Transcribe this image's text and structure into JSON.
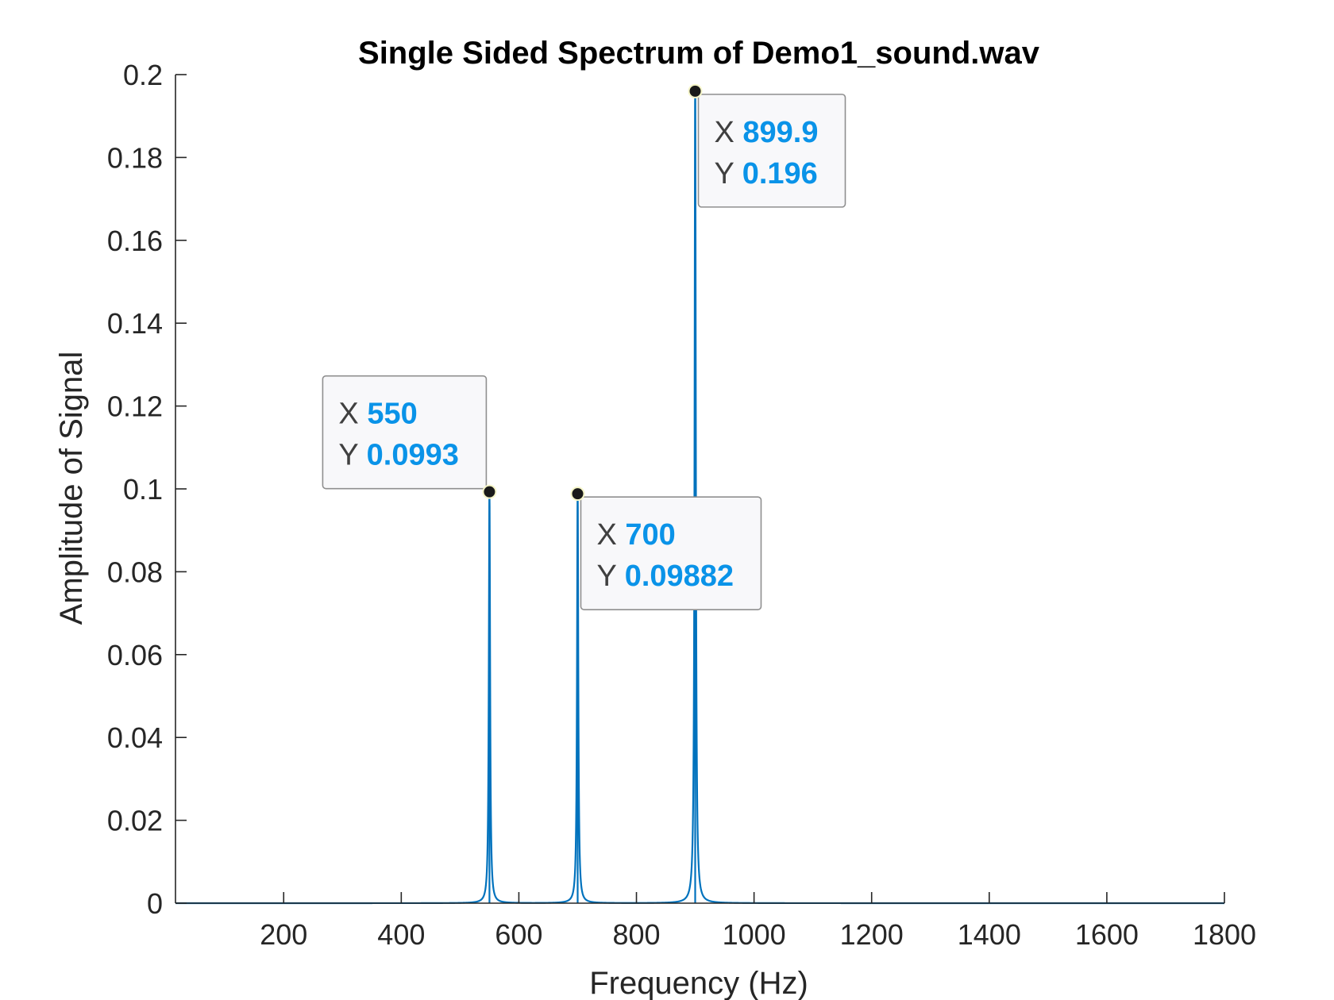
{
  "chart_data": {
    "type": "line",
    "title": "Single Sided Spectrum of Demo1_sound.wav",
    "xlabel": "Frequency (Hz)",
    "ylabel": "Amplitude of Signal",
    "xlim": [
      16,
      1800
    ],
    "ylim": [
      0,
      0.2
    ],
    "xticks": [
      200,
      400,
      600,
      800,
      1000,
      1200,
      1400,
      1600,
      1800
    ],
    "xtick_labels": [
      "200",
      "400",
      "600",
      "800",
      "1000",
      "1200",
      "1400",
      "1600",
      "1800"
    ],
    "yticks": [
      0,
      0.02,
      0.04,
      0.06,
      0.08,
      0.1,
      0.12,
      0.14,
      0.16,
      0.18,
      0.2
    ],
    "ytick_labels": [
      "0",
      "0.02",
      "0.04",
      "0.06",
      "0.08",
      "0.1",
      "0.12",
      "0.14",
      "0.16",
      "0.18",
      "0.2"
    ],
    "grid": false,
    "line_color": "#0072BD",
    "peaks": [
      {
        "x": 550,
        "y": 0.0993
      },
      {
        "x": 700,
        "y": 0.09882
      },
      {
        "x": 899.9,
        "y": 0.196
      }
    ],
    "datatips": [
      {
        "x_label": "X",
        "x_value": "550",
        "y_label": "Y",
        "y_value": "0.0993",
        "anchor_x": 550,
        "anchor_y": 0.0993,
        "placement": "upper-left"
      },
      {
        "x_label": "X",
        "x_value": "700",
        "y_label": "Y",
        "y_value": "0.09882",
        "anchor_x": 700,
        "anchor_y": 0.09882,
        "placement": "lower-right"
      },
      {
        "x_label": "X",
        "x_value": "899.9",
        "y_label": "Y",
        "y_value": "0.196",
        "anchor_x": 899.9,
        "anchor_y": 0.196,
        "placement": "lower-right"
      }
    ],
    "datatip_value_color": "#0A93E8"
  }
}
